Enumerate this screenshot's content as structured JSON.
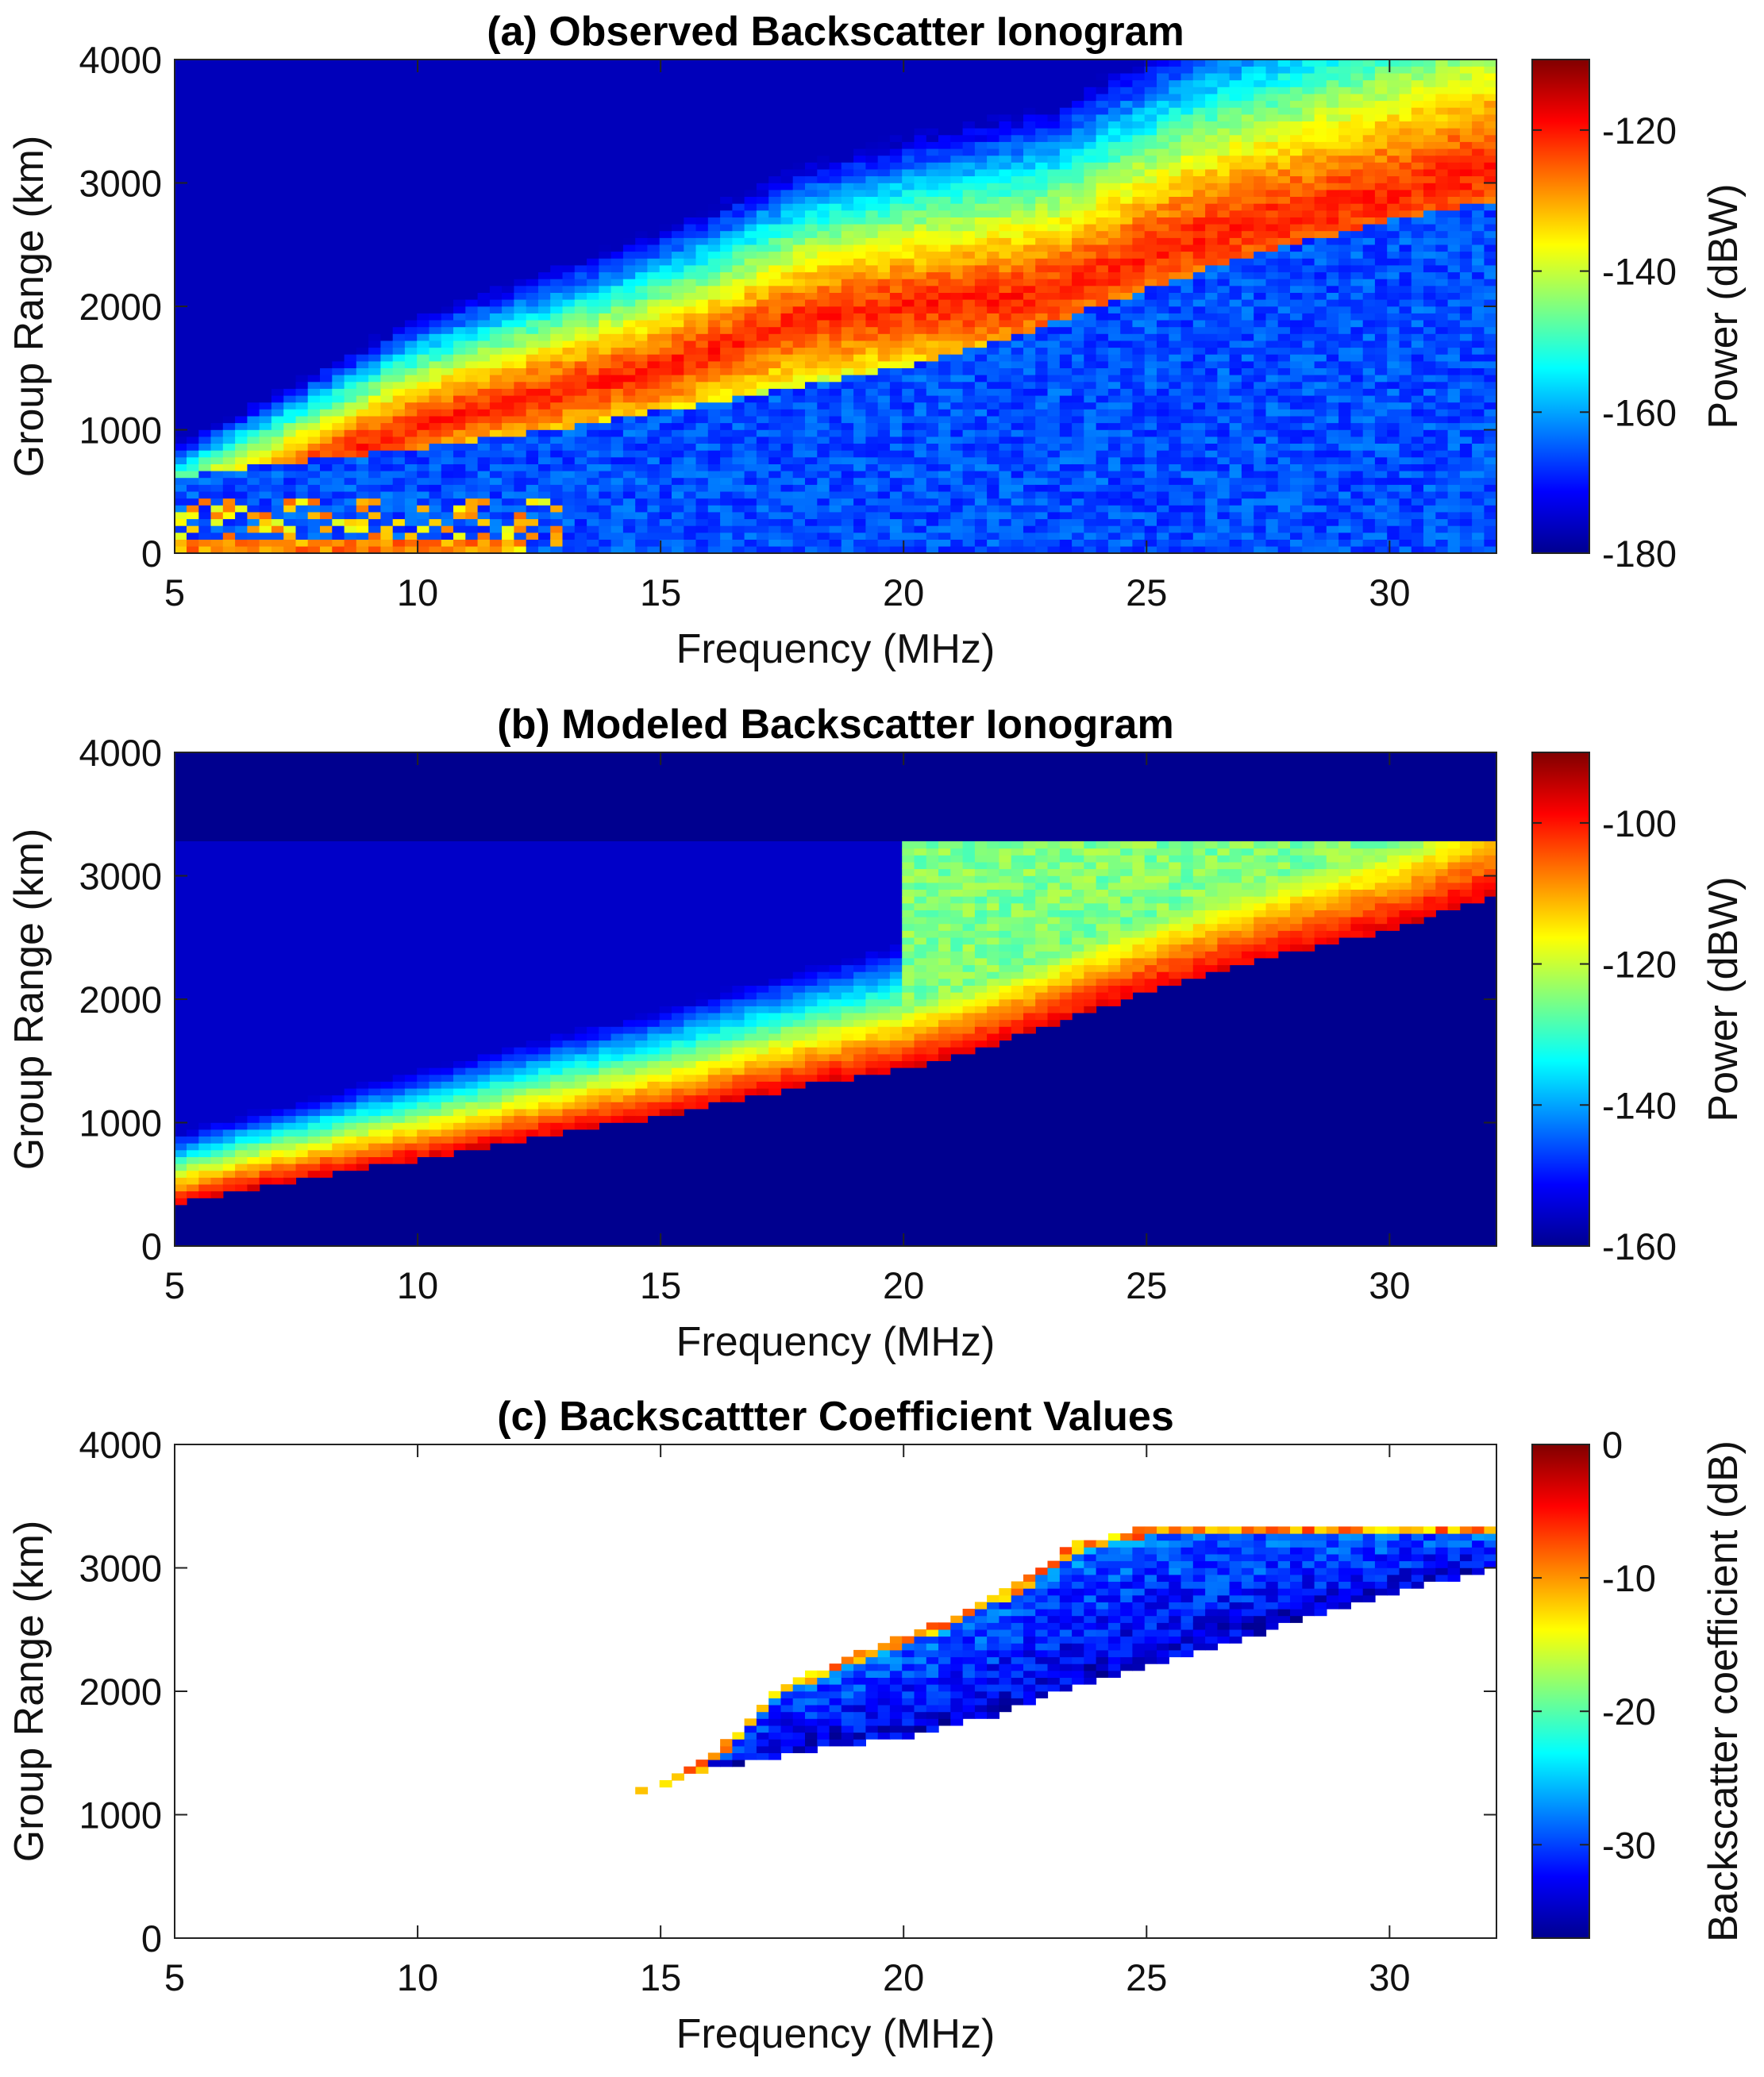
{
  "chart_data": [
    {
      "type": "heatmap",
      "title": "(a) Observed Backscatter Ionogram",
      "xlabel": "Frequency (MHz)",
      "ylabel": "Group Range (km)",
      "xlim": [
        5,
        32.2
      ],
      "ylim": [
        0,
        4000
      ],
      "xticks": [
        5,
        10,
        15,
        20,
        25,
        30
      ],
      "yticks": [
        0,
        1000,
        2000,
        3000,
        4000
      ],
      "colorbar": {
        "label": "Power (dBW)",
        "range": [
          -180,
          -110
        ],
        "ticks": [
          -180,
          -160,
          -140,
          -120
        ]
      },
      "background_value": -172,
      "features": {
        "leading_edge_km": [
          [
            5,
            620
          ],
          [
            8,
            760
          ],
          [
            10,
            850
          ],
          [
            12,
            950
          ],
          [
            15,
            1150
          ],
          [
            18,
            1370
          ],
          [
            20,
            1510
          ],
          [
            22,
            1720
          ],
          [
            24,
            2000
          ],
          [
            26,
            2270
          ],
          [
            28,
            2500
          ],
          [
            30,
            2700
          ],
          [
            32.2,
            2870
          ]
        ],
        "peak_band_km": [
          [
            5,
            260
          ],
          [
            10,
            1050
          ],
          [
            15,
            1500
          ],
          [
            18,
            1900
          ],
          [
            20,
            1990
          ],
          [
            23,
            2100
          ],
          [
            26,
            2550
          ],
          [
            30,
            2900
          ],
          [
            32.2,
            3120
          ]
        ],
        "peak_power_dBW": -121
      }
    },
    {
      "type": "heatmap",
      "title": "(b) Modeled Backscatter Ionogram",
      "xlabel": "Frequency (MHz)",
      "ylabel": "Group Range (km)",
      "xlim": [
        5,
        32.2
      ],
      "ylim": [
        0,
        4000
      ],
      "xticks": [
        5,
        10,
        15,
        20,
        25,
        30
      ],
      "yticks": [
        0,
        1000,
        2000,
        3000,
        4000
      ],
      "colorbar": {
        "label": "Power (dBW)",
        "range": [
          -160,
          -90
        ],
        "ticks": [
          -160,
          -140,
          -120,
          -100
        ]
      },
      "background_value": -160,
      "features": {
        "leading_edge_km": [
          [
            5,
            340
          ],
          [
            7,
            500
          ],
          [
            10,
            700
          ],
          [
            12,
            850
          ],
          [
            15,
            1050
          ],
          [
            18,
            1300
          ],
          [
            20,
            1430
          ],
          [
            22,
            1650
          ],
          [
            25,
            2050
          ],
          [
            28,
            2380
          ],
          [
            30,
            2560
          ],
          [
            32.2,
            2850
          ]
        ],
        "max_range_km": 3300,
        "peak_power_dBW": -97
      }
    },
    {
      "type": "heatmap",
      "title": "(c) Backscattter Coefficient Values",
      "xlabel": "Frequency (MHz)",
      "ylabel": "Group Range (km)",
      "xlim": [
        5,
        32.2
      ],
      "ylim": [
        0,
        4000
      ],
      "xticks": [
        5,
        10,
        15,
        20,
        25,
        30
      ],
      "yticks": [
        0,
        1000,
        2000,
        3000,
        4000
      ],
      "colorbar": {
        "label": "Backscatter coefficient (dB)",
        "range": [
          -37,
          0
        ],
        "ticks": [
          -30,
          -20,
          -10,
          0
        ]
      },
      "features": {
        "lower_edge_km": [
          [
            14.6,
            1180
          ],
          [
            16,
            1360
          ],
          [
            18,
            1520
          ],
          [
            20,
            1620
          ],
          [
            22,
            1820
          ],
          [
            24,
            2100
          ],
          [
            26,
            2300
          ],
          [
            28,
            2550
          ],
          [
            30,
            2780
          ],
          [
            32.2,
            3000
          ]
        ],
        "upper_edge_km": [
          [
            14.6,
            1200
          ],
          [
            16,
            1450
          ],
          [
            17.5,
            2050
          ],
          [
            19,
            2300
          ],
          [
            21,
            2600
          ],
          [
            22.5,
            2900
          ],
          [
            23.5,
            3200
          ],
          [
            25,
            3320
          ],
          [
            32.2,
            3360
          ]
        ],
        "typical_value_dB": -28,
        "top_edge_value_dB": -10
      }
    }
  ]
}
